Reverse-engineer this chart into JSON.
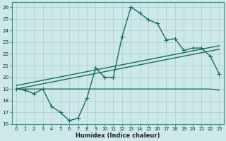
{
  "xlabel": "Humidex (Indice chaleur)",
  "xlim": [
    -0.5,
    23.5
  ],
  "ylim": [
    16,
    26.4
  ],
  "yticks": [
    16,
    17,
    18,
    19,
    20,
    21,
    22,
    23,
    24,
    25,
    26
  ],
  "xticks": [
    0,
    1,
    2,
    3,
    4,
    5,
    6,
    7,
    8,
    9,
    10,
    11,
    12,
    13,
    14,
    15,
    16,
    17,
    18,
    19,
    20,
    21,
    22,
    23
  ],
  "bg_color": "#cce8e8",
  "grid_color": "#aacccc",
  "line_color": "#1a6b60",
  "line1_x": [
    0,
    1,
    2,
    3,
    4,
    5,
    6,
    7,
    8,
    9,
    10,
    11,
    12,
    13,
    14,
    15,
    16,
    17,
    18,
    19,
    20,
    21,
    22,
    23
  ],
  "line1_y": [
    19.0,
    18.9,
    18.6,
    19.0,
    17.5,
    17.0,
    16.3,
    16.5,
    18.2,
    20.8,
    20.0,
    20.0,
    23.5,
    26.0,
    25.5,
    24.9,
    24.6,
    23.2,
    23.3,
    22.3,
    22.5,
    22.5,
    21.8,
    20.3
  ],
  "line2_x": [
    0,
    3,
    13,
    22,
    23
  ],
  "line2_y": [
    19.0,
    19.0,
    19.0,
    19.0,
    18.9
  ],
  "line3_x": [
    0,
    23
  ],
  "line3_y": [
    19.0,
    22.4
  ],
  "line4_x": [
    0,
    23
  ],
  "line4_y": [
    19.3,
    22.7
  ],
  "marker_size": 2.5,
  "line_width": 1.0
}
